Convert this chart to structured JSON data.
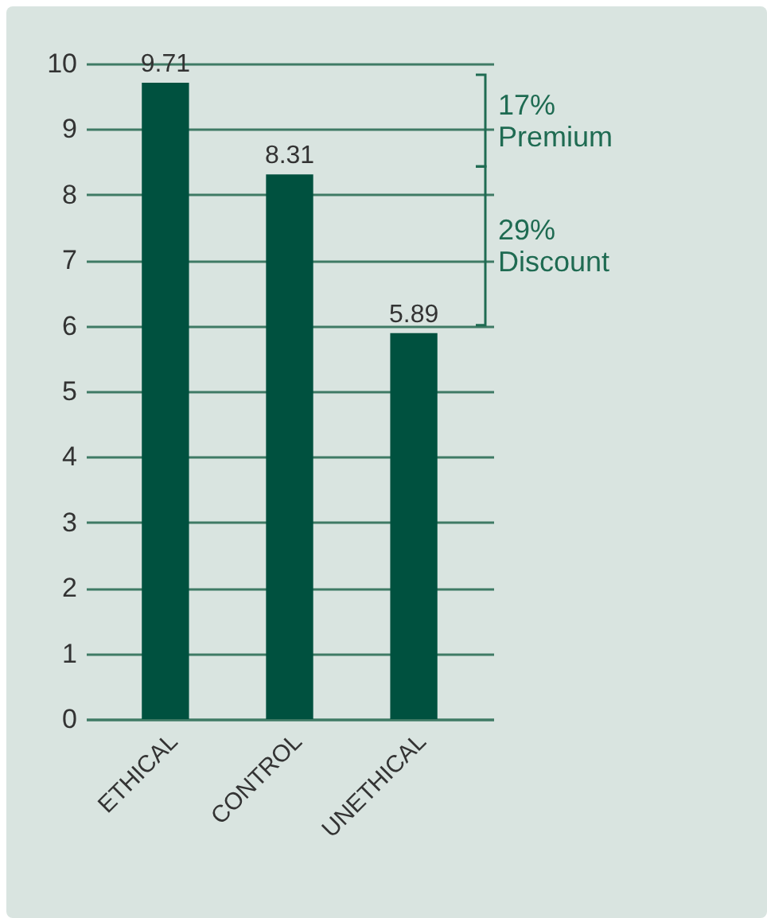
{
  "chart_data": {
    "type": "bar",
    "categories": [
      "ETHICAL",
      "CONTROL",
      "UNETHICAL"
    ],
    "values": [
      9.71,
      8.31,
      5.89
    ],
    "color": "#00513f",
    "data_labels": true,
    "ylim": [
      0,
      10
    ],
    "yticks": [
      0,
      1,
      2,
      3,
      4,
      5,
      6,
      7,
      8,
      9,
      10
    ],
    "grid": "y",
    "annotations": [
      "17% Premium",
      "29% Discount"
    ]
  }
}
